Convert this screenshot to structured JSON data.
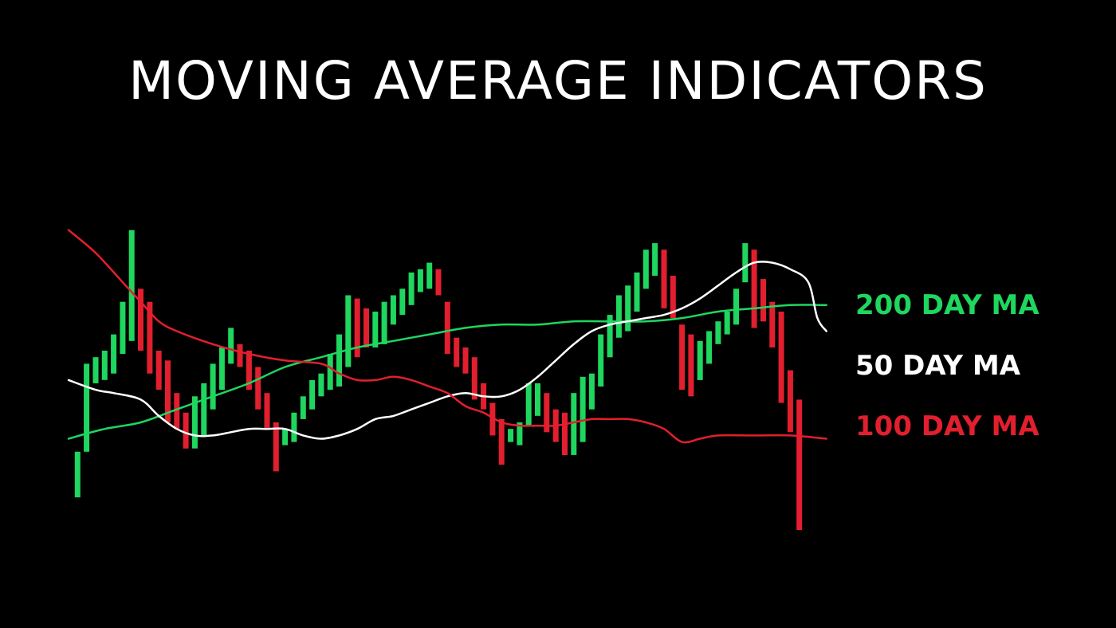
{
  "title": "MOVING AVERAGE INDICATORS",
  "colors": {
    "background": "#000000",
    "up": "#1fd65f",
    "down": "#e21f2e",
    "ma200": "#1fd65f",
    "ma50": "#ffffff",
    "ma100": "#e21f2e",
    "title": "#ffffff"
  },
  "chart_data": {
    "type": "candlestick",
    "grid": false,
    "axes_visible": false,
    "ylim": [
      0,
      100
    ],
    "xlim": [
      0,
      85
    ],
    "legend_placement": "right",
    "candles": [
      {
        "x": 1,
        "open": 10,
        "close": 24,
        "dir": "up"
      },
      {
        "x": 2,
        "open": 24,
        "close": 51,
        "dir": "up"
      },
      {
        "x": 3,
        "open": 45,
        "close": 53,
        "dir": "up"
      },
      {
        "x": 4,
        "open": 46,
        "close": 55,
        "dir": "up"
      },
      {
        "x": 5,
        "open": 48,
        "close": 60,
        "dir": "up"
      },
      {
        "x": 6,
        "open": 54,
        "close": 70,
        "dir": "up"
      },
      {
        "x": 7,
        "open": 58,
        "close": 92,
        "dir": "up"
      },
      {
        "x": 8,
        "open": 74,
        "close": 55,
        "dir": "down"
      },
      {
        "x": 9,
        "open": 70,
        "close": 48,
        "dir": "down"
      },
      {
        "x": 10,
        "open": 55,
        "close": 43,
        "dir": "down"
      },
      {
        "x": 11,
        "open": 52,
        "close": 33,
        "dir": "down"
      },
      {
        "x": 12,
        "open": 42,
        "close": 31,
        "dir": "down"
      },
      {
        "x": 13,
        "open": 36,
        "close": 25,
        "dir": "down"
      },
      {
        "x": 14,
        "open": 25,
        "close": 41,
        "dir": "up"
      },
      {
        "x": 15,
        "open": 29,
        "close": 45,
        "dir": "up"
      },
      {
        "x": 16,
        "open": 37,
        "close": 51,
        "dir": "up"
      },
      {
        "x": 17,
        "open": 43,
        "close": 56,
        "dir": "up"
      },
      {
        "x": 18,
        "open": 51,
        "close": 62,
        "dir": "up"
      },
      {
        "x": 19,
        "open": 57,
        "close": 50,
        "dir": "down"
      },
      {
        "x": 20,
        "open": 55,
        "close": 43,
        "dir": "down"
      },
      {
        "x": 21,
        "open": 50,
        "close": 37,
        "dir": "down"
      },
      {
        "x": 22,
        "open": 42,
        "close": 31,
        "dir": "down"
      },
      {
        "x": 23,
        "open": 33,
        "close": 18,
        "dir": "down"
      },
      {
        "x": 24,
        "open": 26,
        "close": 31,
        "dir": "up"
      },
      {
        "x": 25,
        "open": 27,
        "close": 36,
        "dir": "up"
      },
      {
        "x": 26,
        "open": 34,
        "close": 41,
        "dir": "up"
      },
      {
        "x": 27,
        "open": 37,
        "close": 46,
        "dir": "up"
      },
      {
        "x": 28,
        "open": 41,
        "close": 48,
        "dir": "up"
      },
      {
        "x": 29,
        "open": 43,
        "close": 54,
        "dir": "up"
      },
      {
        "x": 30,
        "open": 44,
        "close": 60,
        "dir": "up"
      },
      {
        "x": 31,
        "open": 50,
        "close": 72,
        "dir": "up"
      },
      {
        "x": 32,
        "open": 71,
        "close": 53,
        "dir": "down"
      },
      {
        "x": 33,
        "open": 68,
        "close": 56,
        "dir": "down"
      },
      {
        "x": 34,
        "open": 56,
        "close": 67,
        "dir": "up"
      },
      {
        "x": 35,
        "open": 57,
        "close": 70,
        "dir": "up"
      },
      {
        "x": 36,
        "open": 63,
        "close": 72,
        "dir": "up"
      },
      {
        "x": 37,
        "open": 66,
        "close": 74,
        "dir": "up"
      },
      {
        "x": 38,
        "open": 69,
        "close": 79,
        "dir": "up"
      },
      {
        "x": 39,
        "open": 73,
        "close": 80,
        "dir": "up"
      },
      {
        "x": 40,
        "open": 74,
        "close": 82,
        "dir": "up"
      },
      {
        "x": 41,
        "open": 80,
        "close": 72,
        "dir": "down"
      },
      {
        "x": 42,
        "open": 70,
        "close": 54,
        "dir": "down"
      },
      {
        "x": 43,
        "open": 59,
        "close": 50,
        "dir": "down"
      },
      {
        "x": 44,
        "open": 56,
        "close": 48,
        "dir": "down"
      },
      {
        "x": 45,
        "open": 53,
        "close": 40,
        "dir": "down"
      },
      {
        "x": 46,
        "open": 45,
        "close": 37,
        "dir": "down"
      },
      {
        "x": 47,
        "open": 39,
        "close": 29,
        "dir": "down"
      },
      {
        "x": 48,
        "open": 34,
        "close": 20,
        "dir": "down"
      },
      {
        "x": 49,
        "open": 27,
        "close": 31,
        "dir": "up"
      },
      {
        "x": 50,
        "open": 26,
        "close": 33,
        "dir": "up"
      },
      {
        "x": 51,
        "open": 32,
        "close": 45,
        "dir": "up"
      },
      {
        "x": 52,
        "open": 35,
        "close": 45,
        "dir": "up"
      },
      {
        "x": 53,
        "open": 42,
        "close": 30,
        "dir": "down"
      },
      {
        "x": 54,
        "open": 37,
        "close": 27,
        "dir": "down"
      },
      {
        "x": 55,
        "open": 36,
        "close": 23,
        "dir": "down"
      },
      {
        "x": 56,
        "open": 23,
        "close": 42,
        "dir": "up"
      },
      {
        "x": 57,
        "open": 27,
        "close": 47,
        "dir": "up"
      },
      {
        "x": 58,
        "open": 37,
        "close": 48,
        "dir": "up"
      },
      {
        "x": 59,
        "open": 44,
        "close": 60,
        "dir": "up"
      },
      {
        "x": 60,
        "open": 53,
        "close": 66,
        "dir": "up"
      },
      {
        "x": 61,
        "open": 59,
        "close": 72,
        "dir": "up"
      },
      {
        "x": 62,
        "open": 61,
        "close": 75,
        "dir": "up"
      },
      {
        "x": 63,
        "open": 67,
        "close": 79,
        "dir": "up"
      },
      {
        "x": 64,
        "open": 74,
        "close": 86,
        "dir": "up"
      },
      {
        "x": 65,
        "open": 78,
        "close": 88,
        "dir": "up"
      },
      {
        "x": 66,
        "open": 86,
        "close": 68,
        "dir": "down"
      },
      {
        "x": 67,
        "open": 78,
        "close": 65,
        "dir": "down"
      },
      {
        "x": 68,
        "open": 63,
        "close": 43,
        "dir": "down"
      },
      {
        "x": 69,
        "open": 60,
        "close": 41,
        "dir": "down"
      },
      {
        "x": 70,
        "open": 46,
        "close": 58,
        "dir": "up"
      },
      {
        "x": 71,
        "open": 51,
        "close": 61,
        "dir": "up"
      },
      {
        "x": 72,
        "open": 57,
        "close": 64,
        "dir": "up"
      },
      {
        "x": 73,
        "open": 60,
        "close": 67,
        "dir": "up"
      },
      {
        "x": 74,
        "open": 63,
        "close": 74,
        "dir": "up"
      },
      {
        "x": 75,
        "open": 76,
        "close": 88,
        "dir": "up"
      },
      {
        "x": 76,
        "open": 86,
        "close": 62,
        "dir": "down"
      },
      {
        "x": 77,
        "open": 77,
        "close": 64,
        "dir": "down"
      },
      {
        "x": 78,
        "open": 70,
        "close": 56,
        "dir": "down"
      },
      {
        "x": 79,
        "open": 67,
        "close": 39,
        "dir": "down"
      },
      {
        "x": 80,
        "open": 49,
        "close": 30,
        "dir": "down"
      },
      {
        "x": 81,
        "open": 40,
        "close": 0,
        "dir": "down"
      }
    ],
    "series": [
      {
        "name": "200 DAY MA",
        "color_key": "ma200",
        "points": [
          [
            0,
            28
          ],
          [
            4,
            31
          ],
          [
            8,
            33
          ],
          [
            12,
            37
          ],
          [
            16,
            41
          ],
          [
            20,
            45
          ],
          [
            24,
            50
          ],
          [
            28,
            53
          ],
          [
            32,
            56
          ],
          [
            36,
            58
          ],
          [
            40,
            60
          ],
          [
            44,
            62
          ],
          [
            48,
            63
          ],
          [
            52,
            63
          ],
          [
            56,
            64
          ],
          [
            60,
            64
          ],
          [
            64,
            64
          ],
          [
            68,
            65
          ],
          [
            72,
            67
          ],
          [
            76,
            68
          ],
          [
            80,
            69
          ],
          [
            84,
            69
          ]
        ]
      },
      {
        "name": "50 DAY MA",
        "color_key": "ma50",
        "points": [
          [
            0,
            46
          ],
          [
            3,
            43
          ],
          [
            5,
            42
          ],
          [
            8,
            40
          ],
          [
            10,
            35
          ],
          [
            12,
            31
          ],
          [
            14,
            29
          ],
          [
            16,
            29
          ],
          [
            18,
            30
          ],
          [
            20,
            31
          ],
          [
            22,
            31
          ],
          [
            24,
            31
          ],
          [
            26,
            29
          ],
          [
            28,
            28
          ],
          [
            30,
            29
          ],
          [
            32,
            31
          ],
          [
            34,
            34
          ],
          [
            36,
            35
          ],
          [
            38,
            37
          ],
          [
            40,
            39
          ],
          [
            42,
            41
          ],
          [
            44,
            42
          ],
          [
            46,
            41
          ],
          [
            48,
            41
          ],
          [
            50,
            43
          ],
          [
            52,
            47
          ],
          [
            54,
            52
          ],
          [
            56,
            57
          ],
          [
            58,
            61
          ],
          [
            60,
            63
          ],
          [
            62,
            64
          ],
          [
            64,
            65
          ],
          [
            66,
            66
          ],
          [
            68,
            68
          ],
          [
            70,
            71
          ],
          [
            72,
            75
          ],
          [
            74,
            79
          ],
          [
            76,
            82
          ],
          [
            78,
            82
          ],
          [
            80,
            80
          ],
          [
            82,
            76
          ],
          [
            83,
            65
          ],
          [
            84,
            61
          ]
        ]
      },
      {
        "name": "100 DAY MA",
        "color_key": "ma100",
        "points": [
          [
            0,
            92
          ],
          [
            3,
            85
          ],
          [
            6,
            76
          ],
          [
            8,
            70
          ],
          [
            10,
            64
          ],
          [
            12,
            61
          ],
          [
            16,
            57
          ],
          [
            20,
            54
          ],
          [
            24,
            52
          ],
          [
            28,
            51
          ],
          [
            30,
            48
          ],
          [
            32,
            46
          ],
          [
            34,
            46
          ],
          [
            36,
            47
          ],
          [
            38,
            46
          ],
          [
            40,
            44
          ],
          [
            42,
            42
          ],
          [
            44,
            38
          ],
          [
            46,
            36
          ],
          [
            48,
            33
          ],
          [
            50,
            32
          ],
          [
            52,
            32
          ],
          [
            54,
            32
          ],
          [
            56,
            33
          ],
          [
            58,
            34
          ],
          [
            60,
            34
          ],
          [
            62,
            34
          ],
          [
            64,
            33
          ],
          [
            66,
            31
          ],
          [
            68,
            27
          ],
          [
            70,
            28
          ],
          [
            72,
            29
          ],
          [
            76,
            29
          ],
          [
            80,
            29
          ],
          [
            84,
            28
          ]
        ]
      }
    ]
  },
  "legend": [
    {
      "label": "200 DAY MA",
      "color_key": "ma200"
    },
    {
      "label": "50 DAY MA",
      "color_key": "ma50"
    },
    {
      "label": "100 DAY MA",
      "color_key": "ma100"
    }
  ]
}
